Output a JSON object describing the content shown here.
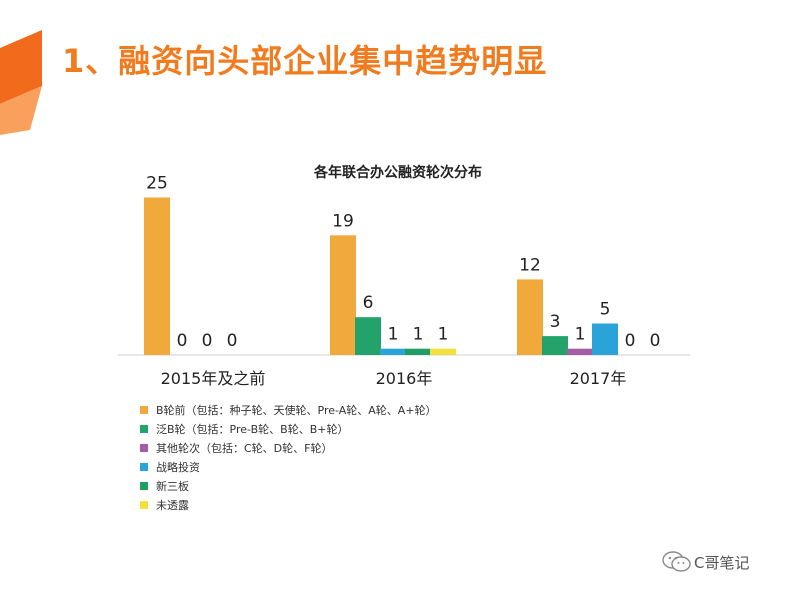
{
  "slide": {
    "title": "1、融资向头部企业集中趋势明显"
  },
  "watermark": {
    "text": "C哥笔记",
    "icon": "wechat-icon"
  },
  "colors": {
    "title": "#f07c1f",
    "deco_dark": "#f26b1d",
    "deco_light": "#f9a15c"
  },
  "chart_data": {
    "type": "bar",
    "title": "各年联合办公融资轮次分布",
    "categories": [
      "2015年及之前",
      "2016年",
      "2017年"
    ],
    "series": [
      {
        "name": "B轮前（包括：种子轮、天使轮、Pre-A轮、A轮、A+轮）",
        "color": "#f2a93b",
        "values": [
          25,
          19,
          12
        ]
      },
      {
        "name": "泛B轮（包括：Pre-B轮、B轮、B+轮）",
        "color": "#23a36b",
        "values": [
          0,
          6,
          3
        ]
      },
      {
        "name": "其他轮次（包括：C轮、D轮、F轮）",
        "color": "#a55ea3",
        "values": [
          0,
          0,
          1
        ]
      },
      {
        "name": "战略投资",
        "color": "#2aa3d8",
        "values": [
          0,
          1,
          5
        ]
      },
      {
        "name": "新三板",
        "color": "#1f9f66",
        "values": [
          0,
          1,
          0
        ]
      },
      {
        "name": "未透露",
        "color": "#f2e13c",
        "values": [
          0,
          1,
          0
        ]
      }
    ],
    "bars": [
      {
        "group": 0,
        "series": 0,
        "value": 25,
        "label": "25"
      },
      {
        "group": 0,
        "series": 1,
        "value": 0,
        "label": "0"
      },
      {
        "group": 0,
        "series": 2,
        "value": 0,
        "label": "0"
      },
      {
        "group": 0,
        "series": 3,
        "value": 0,
        "label": "0"
      },
      {
        "group": 1,
        "series": 0,
        "value": 19,
        "label": "19"
      },
      {
        "group": 1,
        "series": 1,
        "value": 6,
        "label": "6"
      },
      {
        "group": 1,
        "series": 3,
        "value": 1,
        "label": "1"
      },
      {
        "group": 1,
        "series": 4,
        "value": 1,
        "label": "1"
      },
      {
        "group": 1,
        "series": 5,
        "value": 1,
        "label": "1"
      },
      {
        "group": 2,
        "series": 0,
        "value": 12,
        "label": "12"
      },
      {
        "group": 2,
        "series": 1,
        "value": 3,
        "label": "3"
      },
      {
        "group": 2,
        "series": 2,
        "value": 1,
        "label": "1"
      },
      {
        "group": 2,
        "series": 3,
        "value": 5,
        "label": "5"
      },
      {
        "group": 2,
        "series": 4,
        "value": 0,
        "label": "0"
      },
      {
        "group": 2,
        "series": 5,
        "value": 0,
        "label": "0"
      }
    ],
    "ylim": [
      0,
      25
    ],
    "grid": false,
    "legend_position": "bottom-left"
  }
}
